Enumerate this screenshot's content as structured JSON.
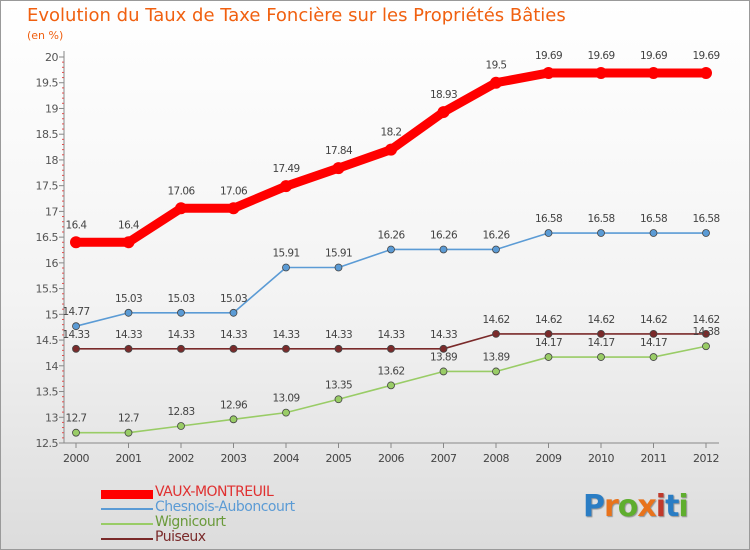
{
  "chart_data": {
    "type": "line",
    "title": "Evolution du Taux de Taxe Foncière sur les Propriétés Bâties",
    "subtitle": "(en %)",
    "x": [
      "2000",
      "2001",
      "2002",
      "2003",
      "2004",
      "2005",
      "2006",
      "2007",
      "2008",
      "2009",
      "2010",
      "2011",
      "2012"
    ],
    "ylim": [
      12.5,
      20
    ],
    "yticks": [
      "12.5",
      "13",
      "13.5",
      "14",
      "14.5",
      "15",
      "15.5",
      "16",
      "16.5",
      "17",
      "17.5",
      "18",
      "18.5",
      "19",
      "19.5",
      "20"
    ],
    "grid": false,
    "legend_position": "bottom-left",
    "series": [
      {
        "name": "VAUX-MONTREUIL",
        "color": "#ff0000",
        "values": [
          16.4,
          16.4,
          17.06,
          17.06,
          17.49,
          17.84,
          18.2,
          18.93,
          19.5,
          19.69,
          19.69,
          19.69,
          19.69
        ],
        "labels": [
          "16.4",
          "16.4",
          "17.06",
          "17.06",
          "17.49",
          "17.84",
          "18.2",
          "18.93",
          "19.5",
          "19.69",
          "19.69",
          "19.69",
          "19.69"
        ]
      },
      {
        "name": "Chesnois-Auboncourt",
        "color": "#5b9bd5",
        "values": [
          14.77,
          15.03,
          15.03,
          15.03,
          15.91,
          15.91,
          16.26,
          16.26,
          16.26,
          16.58,
          16.58,
          16.58,
          16.58
        ],
        "labels": [
          "14.77",
          "15.03",
          "15.03",
          "15.03",
          "15.91",
          "15.91",
          "16.26",
          "16.26",
          "16.26",
          "16.58",
          "16.58",
          "16.58",
          "16.58"
        ]
      },
      {
        "name": "Wignicourt",
        "color": "#99cc66",
        "values": [
          12.7,
          12.7,
          12.83,
          12.96,
          13.09,
          13.35,
          13.62,
          13.89,
          13.89,
          14.17,
          14.17,
          14.17,
          14.38
        ],
        "labels": [
          "12.7",
          "12.7",
          "12.83",
          "12.96",
          "13.09",
          "13.35",
          "13.62",
          "13.89",
          "13.89",
          "14.17",
          "14.17",
          "14.17",
          "14.38"
        ]
      },
      {
        "name": "Puiseux",
        "color": "#7a2a2a",
        "values": [
          14.33,
          14.33,
          14.33,
          14.33,
          14.33,
          14.33,
          14.33,
          14.33,
          14.62,
          14.62,
          14.62,
          14.62,
          14.62
        ],
        "labels": [
          "14.33",
          "14.33",
          "14.33",
          "14.33",
          "14.33",
          "14.33",
          "14.33",
          "14.33",
          "14.62",
          "14.62",
          "14.62",
          "14.62",
          "14.62"
        ]
      }
    ]
  },
  "logo": {
    "text": "Proxiti",
    "colors": [
      "#2a7dc4",
      "#e8731c",
      "#5fae2e",
      "#e8731c",
      "#c0392b",
      "#2a7dc4",
      "#5fae2e"
    ]
  }
}
